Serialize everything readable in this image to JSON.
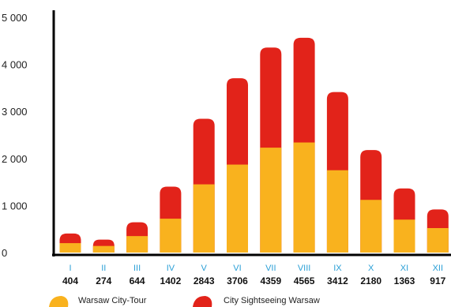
{
  "chart_data": {
    "type": "bar",
    "stacked": true,
    "categories": [
      "I",
      "II",
      "III",
      "IV",
      "V",
      "VI",
      "VII",
      "VIII",
      "IX",
      "X",
      "XI",
      "XII"
    ],
    "totals": [
      404,
      274,
      644,
      1402,
      2843,
      3706,
      4359,
      4565,
      3412,
      2180,
      1363,
      917
    ],
    "series": [
      {
        "name": "Warsaw City-Tour",
        "color": "#f9b21e",
        "values": [
          200,
          140,
          350,
          720,
          1450,
          1870,
          2230,
          2340,
          1750,
          1120,
          700,
          520
        ]
      },
      {
        "name": "City Sightseeing Warsaw",
        "color": "#e2231a",
        "values": [
          204,
          134,
          294,
          682,
          1393,
          1836,
          2129,
          2225,
          1662,
          1060,
          663,
          397
        ]
      }
    ],
    "yticks": [
      0,
      1000,
      2000,
      3000,
      4000,
      5000
    ],
    "ytick_labels": [
      "0",
      "1 000",
      "2 000",
      "3 000",
      "4 000",
      "5 000"
    ],
    "ylim": [
      0,
      5200
    ],
    "grid": false,
    "legend_position": "bottom",
    "colors": {
      "axis": "#000000",
      "category_label": "#2a9fd6",
      "total_label": "#111111"
    }
  }
}
